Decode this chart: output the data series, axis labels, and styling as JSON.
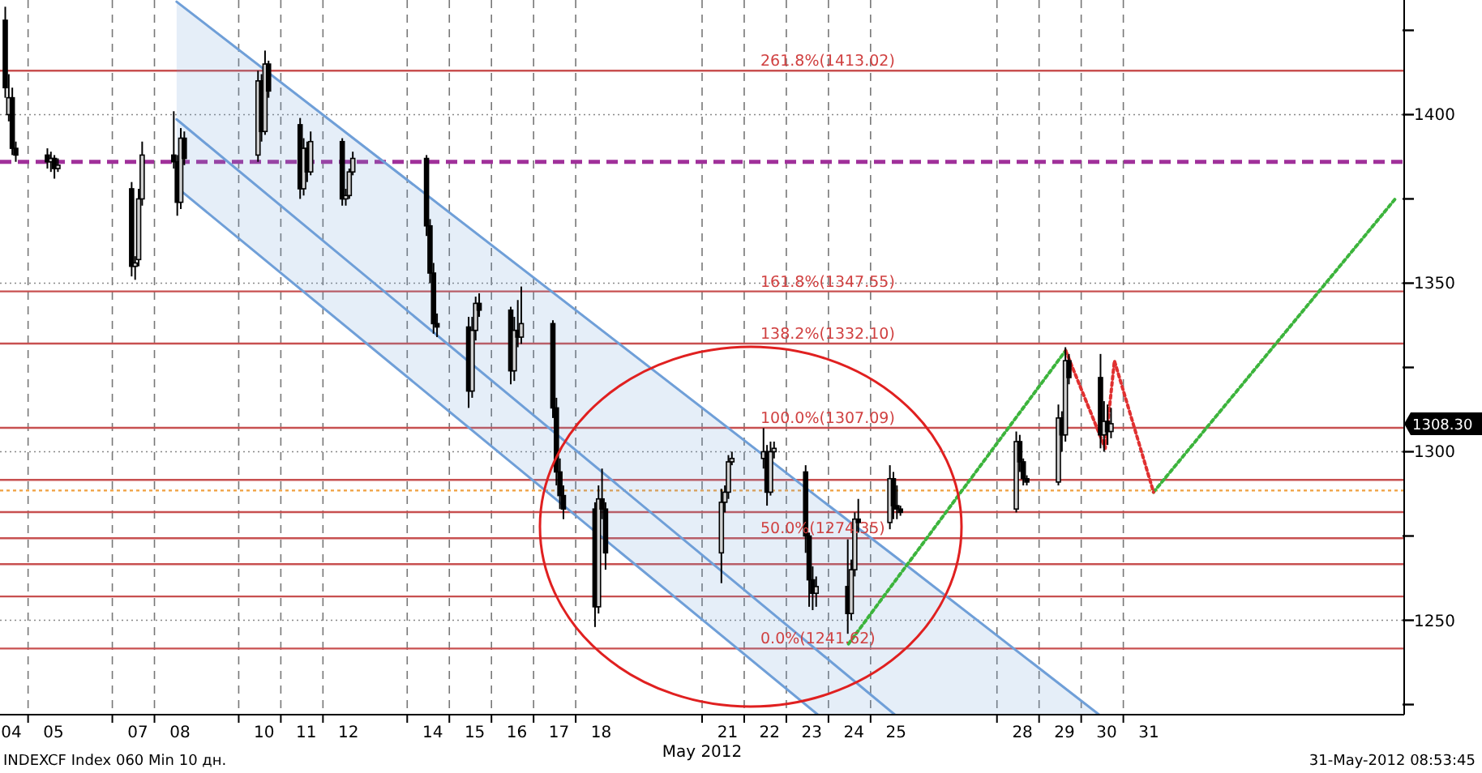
{
  "chart_data": {
    "type": "candlestick",
    "xlabel": "May 2012",
    "xlim": [
      "2012-05-04T08:00",
      "2012-06-06T16:00"
    ],
    "ylim": [
      1222,
      1434
    ],
    "xticks": [
      {
        "value": "2012-05-04T14:30",
        "label": "04"
      },
      {
        "value": "2012-05-05T00:00",
        "label": null
      },
      {
        "value": "2012-05-05T14:30",
        "label": "05"
      },
      {
        "value": "2012-05-07T00:00",
        "label": null
      },
      {
        "value": "2012-05-07T14:30",
        "label": "07"
      },
      {
        "value": "2012-05-08T00:00",
        "label": null
      },
      {
        "value": "2012-05-08T14:30",
        "label": "08"
      },
      {
        "value": "2012-05-10T00:00",
        "label": null
      },
      {
        "value": "2012-05-10T14:30",
        "label": "10"
      },
      {
        "value": "2012-05-11T00:00",
        "label": null
      },
      {
        "value": "2012-05-11T14:30",
        "label": "11"
      },
      {
        "value": "2012-05-12T00:00",
        "label": null
      },
      {
        "value": "2012-05-12T14:30",
        "label": "12"
      },
      {
        "value": "2012-05-14T00:00",
        "label": null
      },
      {
        "value": "2012-05-14T14:30",
        "label": "14"
      },
      {
        "value": "2012-05-15T00:00",
        "label": null
      },
      {
        "value": "2012-05-15T14:30",
        "label": "15"
      },
      {
        "value": "2012-05-16T00:00",
        "label": null
      },
      {
        "value": "2012-05-16T14:30",
        "label": "16"
      },
      {
        "value": "2012-05-17T00:00",
        "label": null
      },
      {
        "value": "2012-05-17T14:30",
        "label": "17"
      },
      {
        "value": "2012-05-18T00:00",
        "label": null
      },
      {
        "value": "2012-05-18T14:30",
        "label": "18"
      },
      {
        "value": "2012-05-21T00:00",
        "label": null
      },
      {
        "value": "2012-05-21T14:30",
        "label": "21"
      },
      {
        "value": "2012-05-22T00:00",
        "label": null
      },
      {
        "value": "2012-05-22T14:30",
        "label": "22"
      },
      {
        "value": "2012-05-23T00:00",
        "label": null
      },
      {
        "value": "2012-05-23T14:30",
        "label": "23"
      },
      {
        "value": "2012-05-24T00:00",
        "label": null
      },
      {
        "value": "2012-05-24T14:30",
        "label": "24"
      },
      {
        "value": "2012-05-25T00:00",
        "label": null
      },
      {
        "value": "2012-05-25T14:30",
        "label": "25"
      },
      {
        "value": "2012-05-28T00:00",
        "label": null
      },
      {
        "value": "2012-05-28T14:30",
        "label": "28"
      },
      {
        "value": "2012-05-29T00:00",
        "label": null
      },
      {
        "value": "2012-05-29T14:30",
        "label": "29"
      },
      {
        "value": "2012-05-30T00:00",
        "label": null
      },
      {
        "value": "2012-05-30T14:30",
        "label": "30"
      },
      {
        "value": "2012-05-31T00:00",
        "label": null
      },
      {
        "value": "2012-05-31T14:30",
        "label": "31"
      }
    ],
    "yticks": [
      {
        "value": 1225,
        "label": null
      },
      1250,
      {
        "value": 1275,
        "label": null
      },
      1300,
      {
        "value": 1325,
        "label": null
      },
      1350,
      {
        "value": 1375,
        "label": null
      },
      1400,
      {
        "value": 1425,
        "label": null
      }
    ],
    "grid": true,
    "x": [
      "2012-05-04T11:00",
      "2012-05-04T13:00",
      "2012-05-04T15:00",
      "2012-05-04T17:00",
      "2012-05-05T11:00",
      "2012-05-05T13:00",
      "2012-05-05T15:00",
      "2012-05-05T17:00",
      "2012-05-07T11:00",
      "2012-05-07T13:00",
      "2012-05-07T15:00",
      "2012-05-07T17:00",
      "2012-05-08T11:00",
      "2012-05-08T13:00",
      "2012-05-08T15:00",
      "2012-05-08T17:00",
      "2012-05-10T11:00",
      "2012-05-10T13:00",
      "2012-05-10T15:00",
      "2012-05-10T17:00",
      "2012-05-11T11:00",
      "2012-05-11T13:00",
      "2012-05-11T15:00",
      "2012-05-11T17:00",
      "2012-05-12T11:00",
      "2012-05-12T13:00",
      "2012-05-12T15:00",
      "2012-05-12T17:00",
      "2012-05-14T11:00",
      "2012-05-14T13:00",
      "2012-05-14T15:00",
      "2012-05-14T17:00",
      "2012-05-15T11:00",
      "2012-05-15T13:00",
      "2012-05-15T15:00",
      "2012-05-15T17:00",
      "2012-05-16T11:00",
      "2012-05-16T13:00",
      "2012-05-16T15:00",
      "2012-05-16T17:00",
      "2012-05-17T11:00",
      "2012-05-17T13:00",
      "2012-05-17T15:00",
      "2012-05-17T17:00",
      "2012-05-18T11:00",
      "2012-05-18T13:00",
      "2012-05-18T15:00",
      "2012-05-18T17:00",
      "2012-05-21T11:00",
      "2012-05-21T13:00",
      "2012-05-21T15:00",
      "2012-05-21T17:00",
      "2012-05-22T11:00",
      "2012-05-22T13:00",
      "2012-05-22T15:00",
      "2012-05-22T17:00",
      "2012-05-23T11:00",
      "2012-05-23T13:00",
      "2012-05-23T15:00",
      "2012-05-23T17:00",
      "2012-05-24T11:00",
      "2012-05-24T13:00",
      "2012-05-24T15:00",
      "2012-05-24T17:00",
      "2012-05-25T11:00",
      "2012-05-25T13:00",
      "2012-05-25T15:00",
      "2012-05-25T17:00",
      "2012-05-28T11:00",
      "2012-05-28T13:00",
      "2012-05-28T15:00",
      "2012-05-28T17:00",
      "2012-05-29T11:00",
      "2012-05-29T13:00",
      "2012-05-29T15:00",
      "2012-05-29T17:00",
      "2012-05-30T11:00",
      "2012-05-30T13:00",
      "2012-05-30T15:00",
      "2012-05-30T17:00"
    ],
    "ohlc": [
      [
        1428,
        1432,
        1405,
        1408
      ],
      [
        1400,
        1412,
        1398,
        1405
      ],
      [
        1405,
        1408,
        1388,
        1390
      ],
      [
        1390,
        1392,
        1386,
        1388
      ],
      [
        1388,
        1390,
        1384,
        1386
      ],
      [
        1386,
        1389,
        1383,
        1387
      ],
      [
        1387,
        1388,
        1381,
        1384
      ],
      [
        1384,
        1387,
        1383,
        1385
      ],
      [
        1378,
        1380,
        1352,
        1355
      ],
      [
        1355,
        1358,
        1351,
        1356
      ],
      [
        1357,
        1378,
        1355,
        1375
      ],
      [
        1375,
        1392,
        1373,
        1388
      ],
      [
        1388,
        1401,
        1384,
        1386
      ],
      [
        1386,
        1388,
        1370,
        1374
      ],
      [
        1374,
        1396,
        1372,
        1393
      ],
      [
        1393,
        1395,
        1385,
        1387
      ],
      [
        1388,
        1413,
        1386,
        1410
      ],
      [
        1410,
        1412,
        1392,
        1395
      ],
      [
        1395,
        1419,
        1394,
        1415
      ],
      [
        1415,
        1416,
        1405,
        1407
      ],
      [
        1397,
        1399,
        1375,
        1378
      ],
      [
        1378,
        1393,
        1376,
        1390
      ],
      [
        1390,
        1392,
        1380,
        1383
      ],
      [
        1383,
        1395,
        1382,
        1392
      ],
      [
        1392,
        1393,
        1373,
        1375
      ],
      [
        1375,
        1378,
        1373,
        1376
      ],
      [
        1376,
        1384,
        1375,
        1383
      ],
      [
        1383,
        1389,
        1382,
        1387
      ],
      [
        1387,
        1388,
        1364,
        1367
      ],
      [
        1367,
        1369,
        1350,
        1353
      ],
      [
        1353,
        1356,
        1335,
        1338
      ],
      [
        1338,
        1341,
        1334,
        1337
      ],
      [
        1337,
        1340,
        1313,
        1318
      ],
      [
        1318,
        1340,
        1316,
        1336
      ],
      [
        1336,
        1346,
        1333,
        1344
      ],
      [
        1344,
        1347,
        1340,
        1342
      ],
      [
        1342,
        1343,
        1320,
        1324
      ],
      [
        1324,
        1340,
        1321,
        1336
      ],
      [
        1336,
        1345,
        1331,
        1334
      ],
      [
        1334,
        1349,
        1332,
        1338
      ],
      [
        1338,
        1339,
        1310,
        1313
      ],
      [
        1313,
        1316,
        1290,
        1294
      ],
      [
        1294,
        1298,
        1283,
        1287
      ],
      [
        1287,
        1290,
        1280,
        1283
      ],
      [
        1283,
        1285,
        1248,
        1254
      ],
      [
        1254,
        1290,
        1252,
        1286
      ],
      [
        1286,
        1295,
        1280,
        1283
      ],
      [
        1283,
        1285,
        1265,
        1270
      ],
      [
        1270,
        1289,
        1261,
        1285
      ],
      [
        1285,
        1290,
        1282,
        1288
      ],
      [
        1288,
        1299,
        1286,
        1297
      ],
      [
        1297,
        1300,
        1296,
        1298
      ],
      [
        1298,
        1307,
        1295,
        1300
      ],
      [
        1300,
        1302,
        1284,
        1288
      ],
      [
        1288,
        1303,
        1287,
        1300
      ],
      [
        1300,
        1303,
        1298,
        1301
      ],
      [
        1294,
        1296,
        1270,
        1275
      ],
      [
        1275,
        1276,
        1254,
        1262
      ],
      [
        1262,
        1266,
        1253,
        1258
      ],
      [
        1258,
        1263,
        1254,
        1260
      ],
      [
        1260,
        1274,
        1246,
        1252
      ],
      [
        1252,
        1268,
        1250,
        1265
      ],
      [
        1265,
        1282,
        1263,
        1280
      ],
      [
        1280,
        1286,
        1276,
        1279
      ],
      [
        1279,
        1296,
        1277,
        1292
      ],
      [
        1292,
        1294,
        1280,
        1284
      ],
      [
        1284,
        1290,
        1280,
        1283
      ],
      [
        1283,
        1284,
        1281,
        1282
      ],
      [
        1283,
        1306,
        1282,
        1303
      ],
      [
        1303,
        1305,
        1294,
        1297
      ],
      [
        1297,
        1298,
        1290,
        1292
      ],
      [
        1292,
        1293,
        1290,
        1291
      ],
      [
        1291,
        1314,
        1290,
        1310
      ],
      [
        1310,
        1312,
        1300,
        1305
      ],
      [
        1305,
        1331,
        1303,
        1327
      ],
      [
        1327,
        1329,
        1320,
        1322
      ],
      [
        1322,
        1329,
        1301,
        1305
      ],
      [
        1305,
        1315,
        1300,
        1309
      ],
      [
        1309,
        1314,
        1302,
        1306
      ],
      [
        1306,
        1313,
        1304,
        1308.3
      ]
    ],
    "series": [
      {
        "type": "line",
        "color": "#6f9fd8",
        "line_style": "solid",
        "x": [
          "2012-05-08T12:37",
          "2012-05-23T17:55",
          "2012-05-25T13:47",
          "2012-05-30T10:11"
        ],
        "values": [
          1433.5,
          1286.5,
          1269,
          1222
        ],
        "lower": [
          1378.5,
          1222,
          1222,
          1222
        ],
        "upper": [
          1433.5,
          1286.5,
          1269,
          1222
        ]
      },
      {
        "type": "line",
        "color": "#6f9fd8",
        "line_style": "solid",
        "x": [
          "2012-05-08T12:37",
          "2012-05-25T13:47"
        ],
        "values": [
          1398.6,
          1222
        ]
      },
      {
        "type": "line",
        "color": "#6f9fd8",
        "line_style": "solid",
        "x": [
          "2012-05-08T16:00",
          "2012-05-23T17:55"
        ],
        "values": [
          1377,
          1222
        ]
      },
      {
        "type": "line",
        "color": "#3cb43c",
        "line_style": "dotted",
        "x": [
          "2012-05-24T11:26",
          "2012-05-29T15:08",
          "2012-05-30T16:18",
          "2012-05-31T17:12",
          "2012-06-06T10:54"
        ],
        "values": [
          1243,
          1330,
          null,
          1288,
          1375
        ]
      },
      {
        "type": "line",
        "color": "#e03030",
        "line_style": "dotted",
        "x": [
          "2012-05-29T15:08",
          "2012-05-30T13:41",
          "2012-05-30T18:55",
          "2012-05-31T17:12"
        ],
        "values": [
          1330,
          1301,
          1327,
          1288
        ]
      }
    ],
    "marker": "none",
    "ref_lines": [
      {
        "axis": "y",
        "value": 1386,
        "color": "#a0309a",
        "line_style": "dashed"
      },
      {
        "axis": "y",
        "value": 1288.5,
        "color": "#f0a040",
        "line_style": "dotted"
      },
      {
        "axis": "y",
        "value": 1413.02,
        "label": "261.8%(1413.02)",
        "color": "#c85050",
        "line_style": "solid"
      },
      {
        "axis": "y",
        "value": 1347.55,
        "label": "161.8%(1347.55)",
        "color": "#c85050",
        "line_style": "solid"
      },
      {
        "axis": "y",
        "value": 1332.1,
        "label": "138.2%(1332.10)",
        "color": "#c85050",
        "line_style": "solid"
      },
      {
        "axis": "y",
        "value": 1307.09,
        "label": "100.0%(1307.09)",
        "color": "#c85050",
        "line_style": "solid"
      },
      {
        "axis": "y",
        "value": 1291.64,
        "color": "#c85050",
        "line_style": "solid"
      },
      {
        "axis": "y",
        "value": 1282.08,
        "color": "#c85050",
        "line_style": "solid"
      },
      {
        "axis": "y",
        "value": 1274.35,
        "label": "50.0%(1274.35)",
        "color": "#c85050",
        "line_style": "solid"
      },
      {
        "axis": "y",
        "value": 1266.63,
        "color": "#c85050",
        "line_style": "solid"
      },
      {
        "axis": "y",
        "value": 1257.07,
        "color": "#c85050",
        "line_style": "solid"
      },
      {
        "axis": "y",
        "value": 1241.62,
        "label": "0.0%(1241.62)",
        "color": "#c85050",
        "line_style": "solid"
      }
    ],
    "annotations": [
      {
        "text": "1308.30",
        "x": "2012-06-06T16:00",
        "y": 1308.3
      },
      "INDEXCF Index 060 Min 10 дн.",
      "31-May-2012 08:53:45"
    ]
  }
}
